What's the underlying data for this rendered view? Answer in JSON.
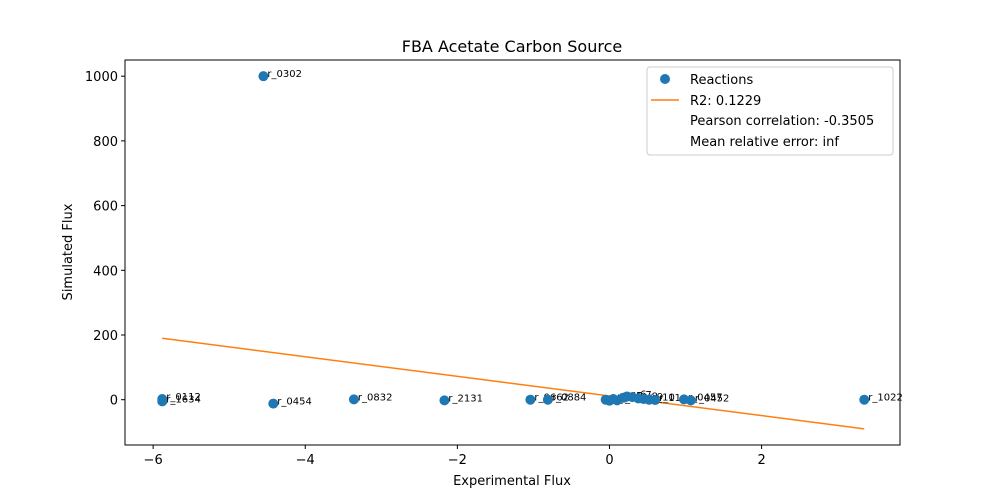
{
  "chart_data": {
    "type": "scatter",
    "title": "FBA Acetate Carbon Source",
    "xlabel": "Experimental Flux",
    "ylabel": "Simulated Flux",
    "xlim": [
      -6.37,
      3.82
    ],
    "ylim": [
      -140,
      1050
    ],
    "xticks": [
      -6,
      -4,
      -2,
      0,
      2
    ],
    "xtick_labels": [
      "−6",
      "−4",
      "−2",
      "0",
      "2"
    ],
    "yticks": [
      0,
      200,
      400,
      600,
      800,
      1000
    ],
    "ytick_labels": [
      "0",
      "200",
      "400",
      "600",
      "800",
      "1000"
    ],
    "grid": false,
    "legend_position": "top-right",
    "colors": {
      "points": "#1f77b4",
      "fit_line": "#ff7f0e",
      "axes": "#000000"
    },
    "series": [
      {
        "name": "Reactions",
        "kind": "points",
        "points": [
          {
            "label": "r_0302",
            "x": -4.55,
            "y": 1000
          },
          {
            "label": "r_0112",
            "x": -5.88,
            "y": 2
          },
          {
            "label": "r_1634",
            "x": -5.88,
            "y": -5
          },
          {
            "label": "r_0454",
            "x": -4.42,
            "y": -12
          },
          {
            "label": "r_0832",
            "x": -3.36,
            "y": 1
          },
          {
            "label": "r_2131",
            "x": -2.17,
            "y": -2
          },
          {
            "label": "r_0662",
            "x": -1.04,
            "y": 0
          },
          {
            "label": "r_0884",
            "x": -0.81,
            "y": 0
          },
          {
            "label": "r_1",
            "x": -0.05,
            "y": 0
          },
          {
            "label": "r_2",
            "x": 0.0,
            "y": -3
          },
          {
            "label": "r_3",
            "x": 0.05,
            "y": 2
          },
          {
            "label": "r_4",
            "x": 0.1,
            "y": -2
          },
          {
            "label": "r_5",
            "x": 0.18,
            "y": 6
          },
          {
            "label": "r_6",
            "x": 0.23,
            "y": 10
          },
          {
            "label": "r_7",
            "x": 0.3,
            "y": 8
          },
          {
            "label": "r_8",
            "x": 0.38,
            "y": 4
          },
          {
            "label": "r_9",
            "x": 0.45,
            "y": 2
          },
          {
            "label": "r_10",
            "x": 0.52,
            "y": 0
          },
          {
            "label": "r_11",
            "x": 0.6,
            "y": -1
          },
          {
            "label": "r_0457",
            "x": 0.98,
            "y": 1
          },
          {
            "label": "r_0452",
            "x": 1.07,
            "y": -2
          },
          {
            "label": "r_1022",
            "x": 3.35,
            "y": 0
          }
        ]
      },
      {
        "name": "R2: 0.1229",
        "kind": "line",
        "x": [
          -5.88,
          3.35
        ],
        "y": [
          190,
          -90
        ]
      }
    ],
    "legend": {
      "entries": [
        {
          "text": "Reactions",
          "marker": "point"
        },
        {
          "text": "R2: 0.1229",
          "marker": "line"
        },
        {
          "text": "Pearson correlation: -0.3505",
          "marker": "none"
        },
        {
          "text": "Mean relative error: inf",
          "marker": "none"
        }
      ]
    }
  }
}
